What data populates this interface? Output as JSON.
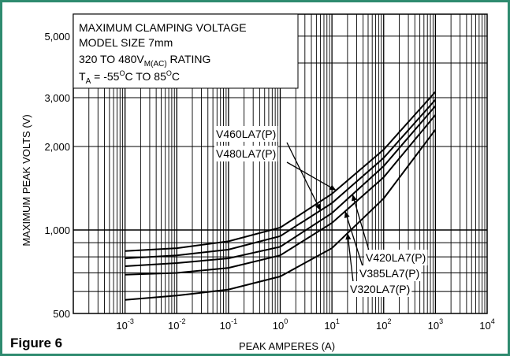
{
  "figure_label": "Figure 6",
  "colors": {
    "frame": "#2e8b6f",
    "line": "#000000",
    "background": "#ffffff"
  },
  "chart_data": {
    "type": "line",
    "title": "",
    "xlabel": "PEAK AMPERES (A)",
    "ylabel": "MAXIMUM PEAK VOLTS (V)",
    "x_scale": "log",
    "y_scale": "log",
    "xlim": [
      0.0001,
      10000
    ],
    "ylim": [
      500,
      6000
    ],
    "grid": true,
    "x_ticks": [
      {
        "value": 0.001,
        "base": "10",
        "exp": "-3"
      },
      {
        "value": 0.01,
        "base": "10",
        "exp": "-2"
      },
      {
        "value": 0.1,
        "base": "10",
        "exp": "-1"
      },
      {
        "value": 1,
        "base": "10",
        "exp": "0"
      },
      {
        "value": 10,
        "base": "10",
        "exp": "1"
      },
      {
        "value": 100,
        "base": "10",
        "exp": "2"
      },
      {
        "value": 1000,
        "base": "10",
        "exp": "3"
      },
      {
        "value": 10000,
        "base": "10",
        "exp": "4"
      }
    ],
    "y_ticks": [
      {
        "value": 500,
        "label": "500"
      },
      {
        "value": 1000,
        "label": "1,000"
      },
      {
        "value": 2000,
        "label": "2,000"
      },
      {
        "value": 3000,
        "label": "3,000"
      },
      {
        "value": 5000,
        "label": "5,000"
      }
    ],
    "info_box": {
      "line1": "MAXIMUM CLAMPING VOLTAGE",
      "line2": "MODEL SIZE 7mm",
      "line3_main": "320 TO 480V",
      "line3_sub": "M(AC)",
      "line3_end": " RATING",
      "line4_main": "T",
      "line4_sub": "A",
      "line4_mid1": " = -55",
      "line4_sup1": "O",
      "line4_mid2": "C TO 85",
      "line4_sup2": "O",
      "line4_end": "C"
    },
    "series": [
      {
        "name": "V480LA7(P)",
        "x": [
          0.001,
          0.01,
          0.1,
          1,
          10,
          100,
          1000
        ],
        "y": [
          840,
          860,
          910,
          1020,
          1350,
          1950,
          3150
        ]
      },
      {
        "name": "V460LA7(P)",
        "x": [
          0.001,
          0.01,
          0.1,
          1,
          10,
          100,
          1000
        ],
        "y": [
          790,
          810,
          850,
          950,
          1250,
          1820,
          2950
        ]
      },
      {
        "name": "V420LA7(P)",
        "x": [
          0.001,
          0.01,
          0.1,
          1,
          10,
          100,
          1000
        ],
        "y": [
          740,
          760,
          790,
          870,
          1150,
          1700,
          2800
        ]
      },
      {
        "name": "V385LA7(P)",
        "x": [
          0.001,
          0.01,
          0.1,
          1,
          10,
          100,
          1000
        ],
        "y": [
          690,
          700,
          730,
          810,
          1060,
          1550,
          2600
        ]
      },
      {
        "name": "V320LA7(P)",
        "x": [
          0.001,
          0.01,
          0.1,
          1,
          10,
          100,
          1000
        ],
        "y": [
          560,
          580,
          610,
          680,
          860,
          1300,
          2300
        ]
      }
    ],
    "annotations": [
      {
        "text": "V460LA7(P)",
        "series": "V460LA7(P)",
        "target_x": 6,
        "side": "upper"
      },
      {
        "text": "V480LA7(P)",
        "series": "V480LA7(P)",
        "target_x": 12,
        "side": "upper"
      },
      {
        "text": "V420LA7(P)",
        "series": "V420LA7(P)",
        "target_x": 25,
        "side": "lower"
      },
      {
        "text": "V385LA7(P)",
        "series": "V385LA7(P)",
        "target_x": 18,
        "side": "lower"
      },
      {
        "text": "V320LA7(P)",
        "series": "V320LA7(P)",
        "target_x": 20,
        "side": "lower"
      }
    ]
  }
}
